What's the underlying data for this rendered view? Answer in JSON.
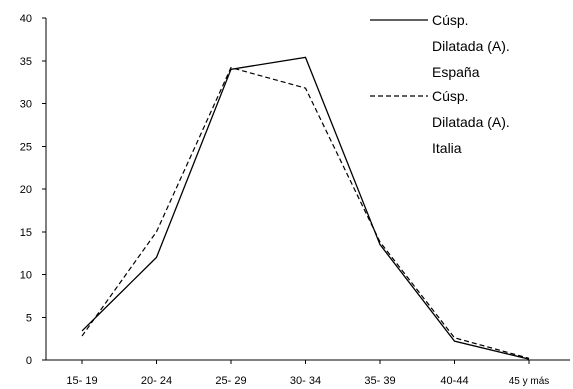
{
  "chart_data": {
    "type": "line",
    "title": "",
    "xlabel": "",
    "ylabel": "",
    "categories": [
      "15- 19",
      "20- 24",
      "25- 29",
      "30- 34",
      "35- 39",
      "40-44",
      "45 y más"
    ],
    "yticks": [
      "0",
      "5",
      "10",
      "15",
      "20",
      "25",
      "30",
      "35",
      "40"
    ],
    "ylim": [
      0,
      40
    ],
    "grid": false,
    "legend_placement": "top-right",
    "series": [
      {
        "name": "Cúsp. Dilatada (A). España",
        "name_lines": [
          "Cúsp.",
          "Dilatada (A).",
          "España"
        ],
        "style": "solid",
        "color": "#000000",
        "values": [
          3.4,
          12.0,
          34.0,
          35.4,
          13.5,
          2.2,
          0.1
        ]
      },
      {
        "name": "Cúsp. Dilatada (A). Italia",
        "name_lines": [
          "Cúsp.",
          "Dilatada (A).",
          "Italia"
        ],
        "style": "dashed",
        "color": "#000000",
        "values": [
          2.8,
          15.0,
          34.2,
          31.8,
          13.8,
          2.6,
          0.2
        ]
      }
    ]
  }
}
